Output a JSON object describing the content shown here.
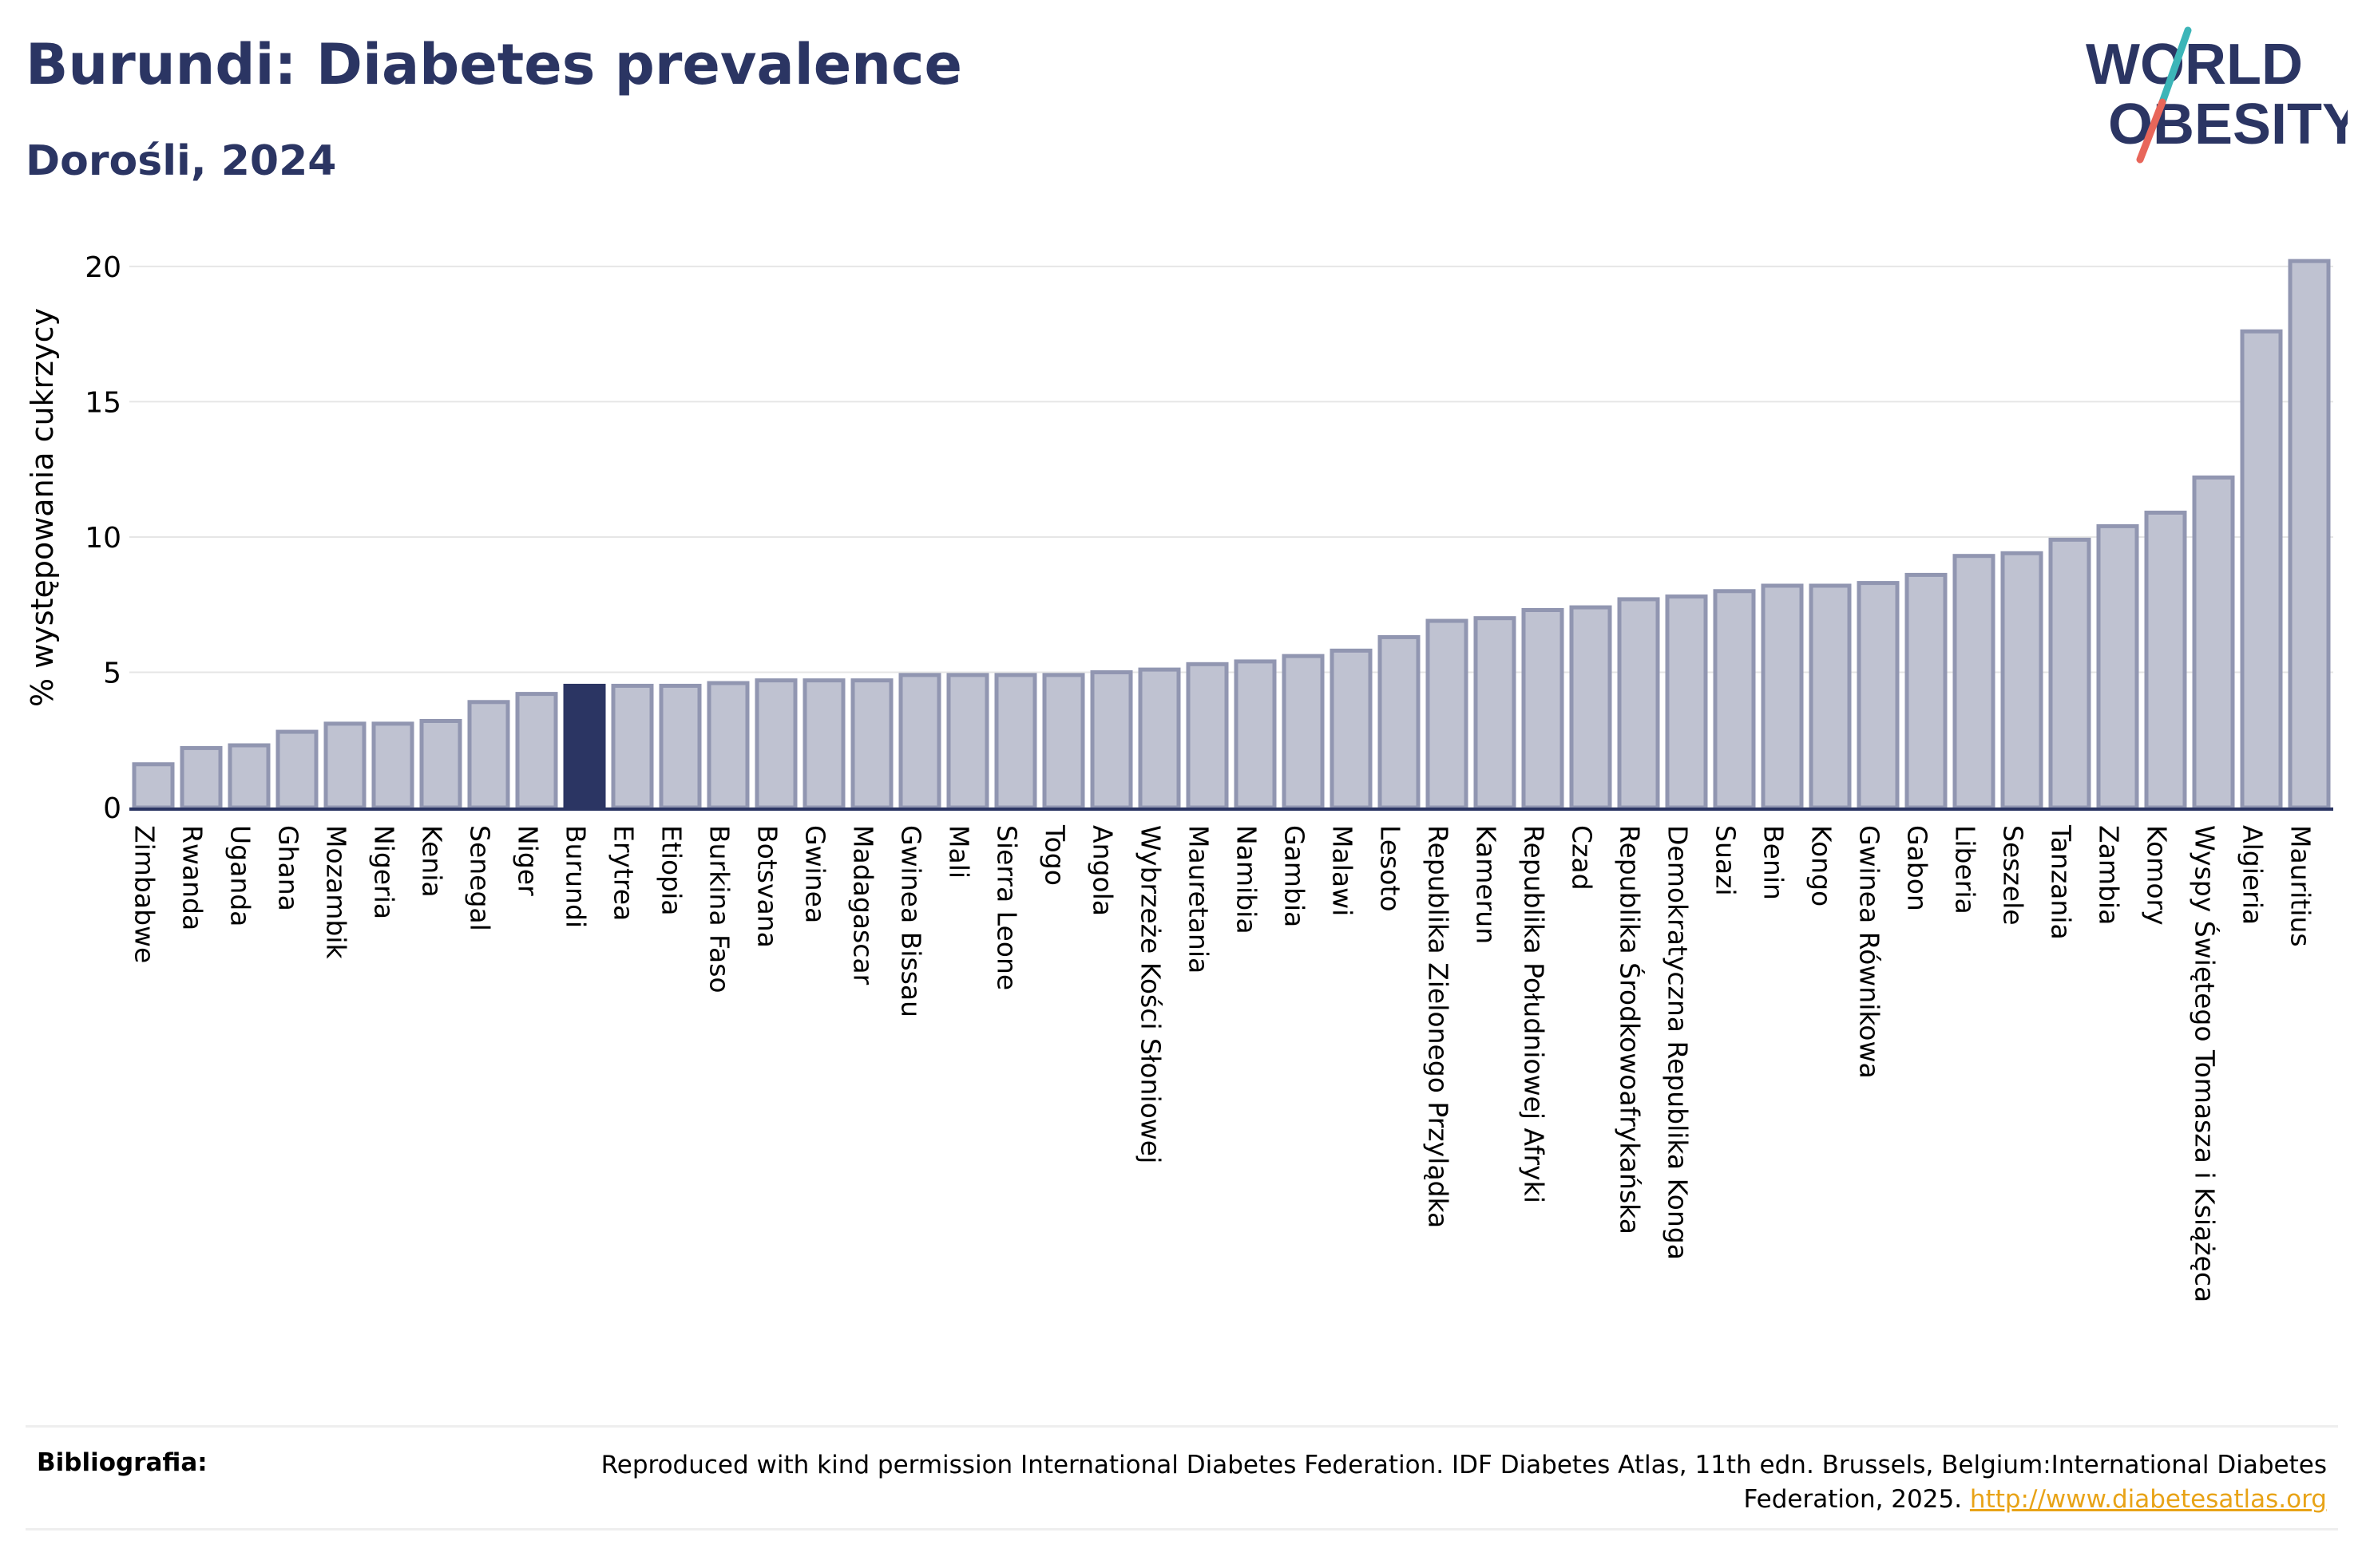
{
  "header": {
    "title": "Burundi: Diabetes prevalence",
    "subtitle": "Dorośli, 2024"
  },
  "logo": {
    "line1": "WORLD",
    "line2": "OBESITY",
    "colors": {
      "text": "#2b3563",
      "slash_top": "#3cb5b8",
      "slash_bottom": "#e8665a"
    }
  },
  "chart_data": {
    "type": "bar",
    "title": "Burundi: Diabetes prevalence",
    "subtitle": "Dorośli, 2024",
    "xlabel": "",
    "ylabel": "% występowania cukrzycy",
    "ylim": [
      0,
      21
    ],
    "yticks": [
      0,
      5,
      10,
      15,
      20
    ],
    "grid": true,
    "highlight": "Burundi",
    "colors": {
      "bar": "#bfc2d1",
      "bar_border": "#9196b1",
      "highlight": "#2b3563",
      "grid": "#e6e6e6",
      "axis": "#2b3563"
    },
    "categories": [
      "Zimbabwe",
      "Rwanda",
      "Uganda",
      "Ghana",
      "Mozambik",
      "Nigeria",
      "Kenia",
      "Senegal",
      "Niger",
      "Burundi",
      "Erytrea",
      "Etiopia",
      "Burkina Faso",
      "Botsvana",
      "Gwinea",
      "Madagascar",
      "Gwinea Bissau",
      "Mali",
      "Sierra Leone",
      "Togo",
      "Angola",
      "Wybrzeże Kości Słoniowej",
      "Mauretania",
      "Namibia",
      "Gambia",
      "Malawi",
      "Lesoto",
      "Republika Zielonego Przylądka",
      "Kamerun",
      "Republika Południowej Afryki",
      "Czad",
      "Republika Środkowoafrykańska",
      "Demokratyczna Republika Konga",
      "Suazi",
      "Benin",
      "Kongo",
      "Gwinea Równikowa",
      "Gabon",
      "Liberia",
      "Seszele",
      "Tanzania",
      "Zambia",
      "Komory",
      "Wyspy Świętego Tomasza i Książęca",
      "Algieria",
      "Mauritius"
    ],
    "values": [
      1.6,
      2.2,
      2.3,
      2.8,
      3.1,
      3.1,
      3.2,
      3.9,
      4.2,
      4.5,
      4.5,
      4.5,
      4.6,
      4.7,
      4.7,
      4.7,
      4.9,
      4.9,
      4.9,
      4.9,
      5.0,
      5.1,
      5.3,
      5.4,
      5.6,
      5.8,
      6.3,
      6.9,
      7.0,
      7.3,
      7.4,
      7.7,
      7.8,
      8.0,
      8.2,
      8.2,
      8.3,
      8.6,
      9.3,
      9.4,
      9.9,
      10.4,
      10.9,
      12.2,
      17.6,
      20.2
    ]
  },
  "footer": {
    "label": "Bibliografia:",
    "text": "Reproduced with kind permission International Diabetes Federation. IDF Diabetes Atlas, 11th edn. Brussels, Belgium:International Diabetes Federation, 2025.",
    "link": "http://www.diabetesatlas.org"
  }
}
